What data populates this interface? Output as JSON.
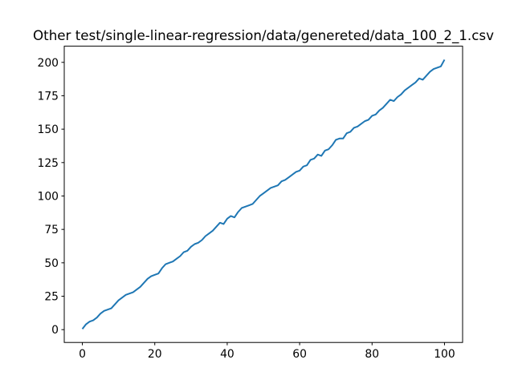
{
  "chart_data": {
    "type": "line",
    "title": "Other test/single-linear-regression/data/genereted/data_100_2_1.csv",
    "x": [
      0,
      1,
      2,
      3,
      4,
      5,
      6,
      7,
      8,
      9,
      10,
      11,
      12,
      13,
      14,
      15,
      16,
      17,
      18,
      19,
      20,
      21,
      22,
      23,
      24,
      25,
      26,
      27,
      28,
      29,
      30,
      31,
      32,
      33,
      34,
      35,
      36,
      37,
      38,
      39,
      40,
      41,
      42,
      43,
      44,
      45,
      46,
      47,
      48,
      49,
      50,
      51,
      52,
      53,
      54,
      55,
      56,
      57,
      58,
      59,
      60,
      61,
      62,
      63,
      64,
      65,
      66,
      67,
      68,
      69,
      70,
      71,
      72,
      73,
      74,
      75,
      76,
      77,
      78,
      79,
      80,
      81,
      82,
      83,
      84,
      85,
      86,
      87,
      88,
      89,
      90,
      91,
      92,
      93,
      94,
      95,
      96,
      97,
      98,
      99,
      100
    ],
    "series": [
      {
        "color": "#1f77b4",
        "values": [
          0.5,
          4,
          6,
          7,
          9,
          12,
          14,
          15,
          16,
          19,
          22,
          24,
          26,
          27,
          28,
          30,
          32,
          35,
          38,
          40,
          41,
          42,
          46,
          49,
          50,
          51,
          53,
          55,
          58,
          59,
          62,
          64,
          65,
          67,
          70,
          72,
          74,
          77,
          80,
          79,
          83,
          85,
          84,
          88,
          91,
          92,
          93,
          94,
          97,
          100,
          102,
          104,
          106,
          107,
          108,
          111,
          112,
          114,
          116,
          118,
          119,
          122,
          123,
          127,
          128,
          131,
          130,
          134,
          135,
          138,
          142,
          143,
          143,
          147,
          148,
          151,
          152,
          154,
          156,
          157,
          160,
          161,
          164,
          166,
          169,
          172,
          171,
          174,
          176,
          179,
          181,
          183,
          185,
          188,
          187,
          190,
          193,
          195,
          196,
          197,
          202
        ]
      }
    ],
    "xlim": [
      -5,
      105
    ],
    "xticks": [
      0,
      20,
      40,
      60,
      80,
      100
    ],
    "ylim": [
      -9.6,
      212.1
    ],
    "yticks": [
      0,
      25,
      50,
      75,
      100,
      125,
      150,
      175,
      200
    ]
  }
}
